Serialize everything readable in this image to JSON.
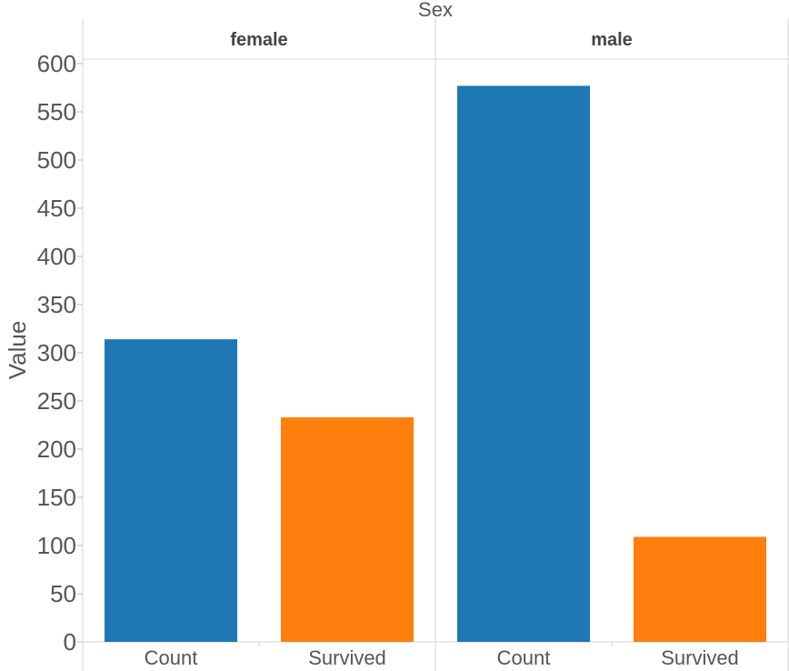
{
  "chart_data": {
    "type": "bar",
    "facet_title": "Sex",
    "ylabel": "Value",
    "ylim": [
      0,
      600
    ],
    "yticks": [
      0,
      50,
      100,
      150,
      200,
      250,
      300,
      350,
      400,
      450,
      500,
      550,
      600
    ],
    "categories": [
      "Count",
      "Survived"
    ],
    "colors": {
      "Count": "#1f77b4",
      "Survived": "#ff7f0e"
    },
    "panels": [
      {
        "facet": "female",
        "values": [
          314,
          233
        ]
      },
      {
        "facet": "male",
        "values": [
          577,
          109
        ]
      }
    ],
    "grid": false,
    "legend": "none"
  }
}
